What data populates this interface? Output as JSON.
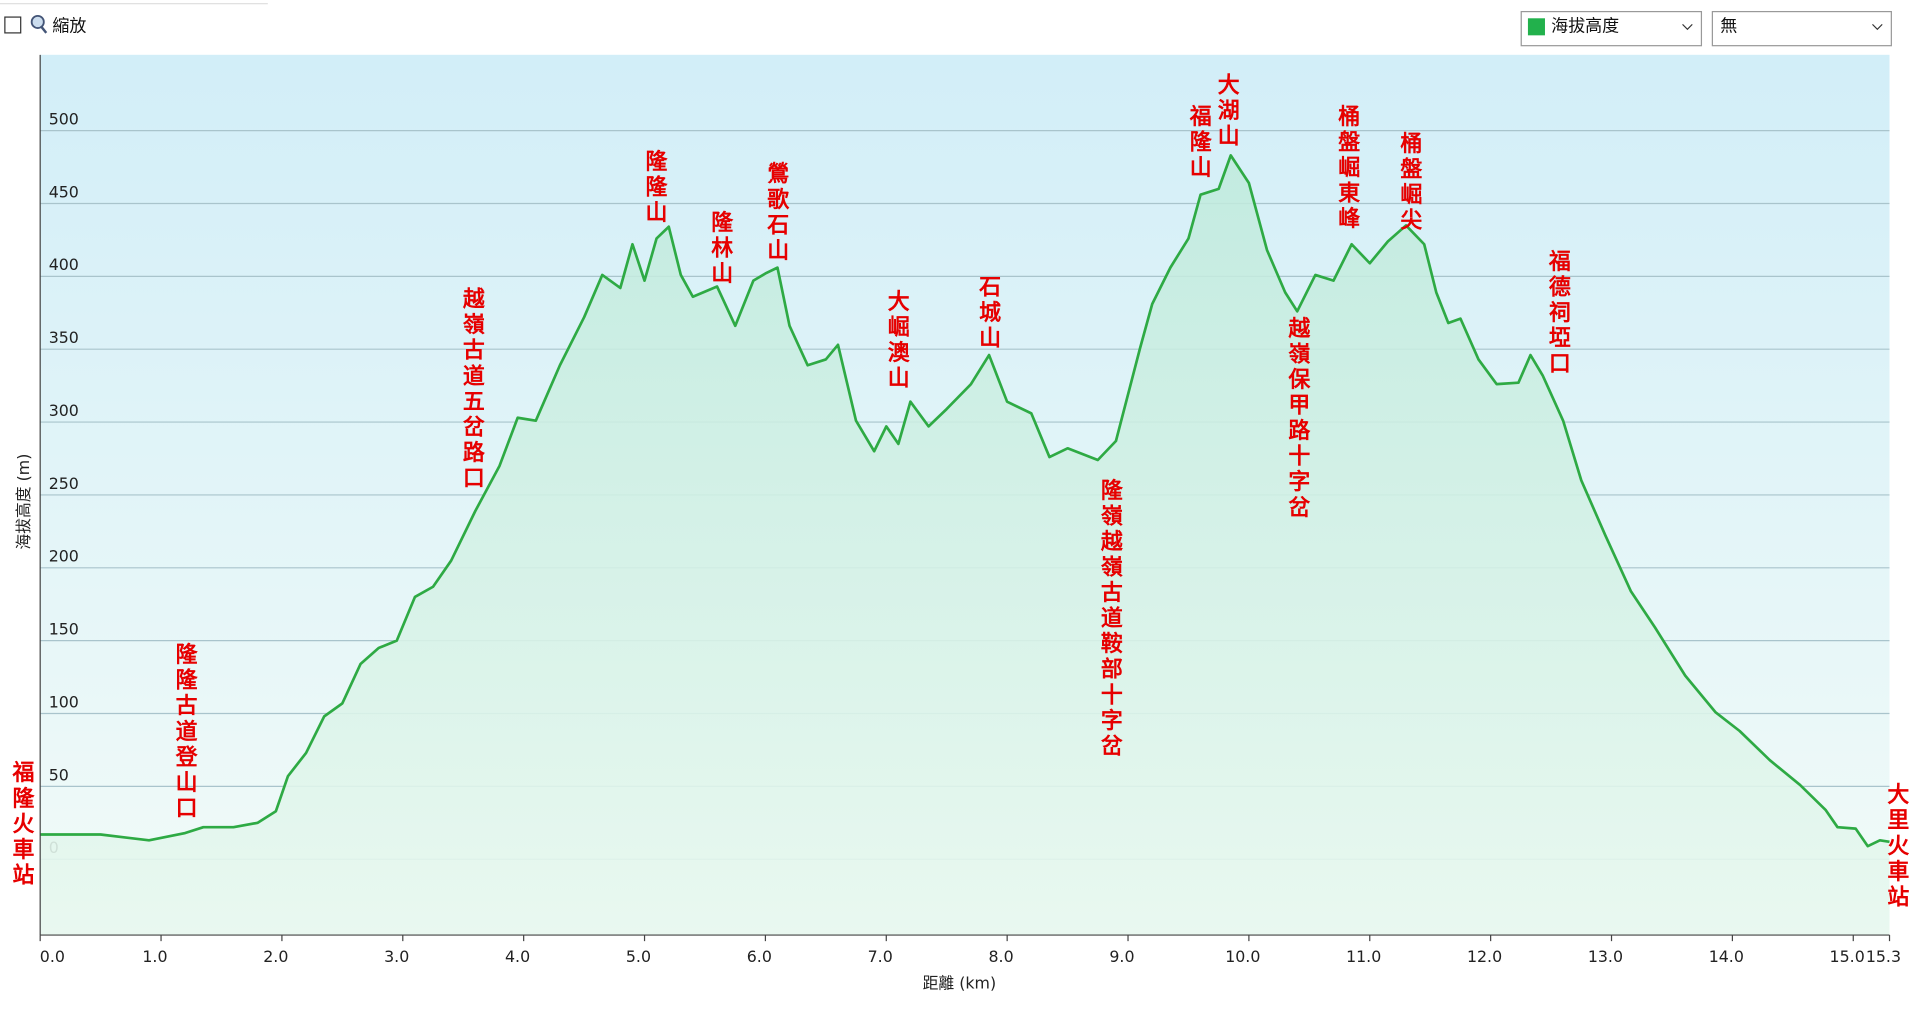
{
  "controls": {
    "zoom_label": "縮放",
    "series_select": "海拔高度",
    "compare_select": "無"
  },
  "chart_data": {
    "type": "area",
    "x_label": "距離 (km)",
    "y_label": "海拔高度 (m)",
    "series": [
      {
        "name": "海拔高度",
        "color": "#2eaa44",
        "x": [
          0,
          0.5,
          0.9,
          1.2,
          1.35,
          1.6,
          1.8,
          1.95,
          2.05,
          2.2,
          2.35,
          2.5,
          2.65,
          2.8,
          2.95,
          3.1,
          3.25,
          3.4,
          3.6,
          3.8,
          3.95,
          4.1,
          4.3,
          4.5,
          4.65,
          4.8,
          4.9,
          5.0,
          5.1,
          5.2,
          5.3,
          5.4,
          5.6,
          5.75,
          5.9,
          6.0,
          6.1,
          6.2,
          6.35,
          6.5,
          6.6,
          6.75,
          6.9,
          7.0,
          7.1,
          7.2,
          7.35,
          7.5,
          7.7,
          7.85,
          8.0,
          8.2,
          8.35,
          8.5,
          8.75,
          8.9,
          9.1,
          9.2,
          9.35,
          9.5,
          9.6,
          9.75,
          9.85,
          10.0,
          10.15,
          10.3,
          10.4,
          10.55,
          10.7,
          10.85,
          11.0,
          11.15,
          11.3,
          11.45,
          11.55,
          11.65,
          11.75,
          11.9,
          12.05,
          12.23,
          12.33,
          12.43,
          12.6,
          12.75,
          12.95,
          13.16,
          13.36,
          13.61,
          13.86,
          14.06,
          14.31,
          14.56,
          14.77,
          14.87,
          15.02,
          15.12,
          15.22,
          15.3
        ],
        "values": [
          17,
          17,
          13,
          18,
          22,
          22,
          25,
          33,
          57,
          73,
          98,
          107,
          134,
          145,
          150,
          180,
          187,
          205,
          239,
          270,
          303,
          301,
          339,
          372,
          401,
          392,
          422,
          397,
          426,
          434,
          401,
          386,
          393,
          366,
          397,
          402,
          406,
          366,
          339,
          343,
          353,
          301,
          280,
          297,
          285,
          314,
          297,
          309,
          326,
          346,
          314,
          306,
          276,
          282,
          274,
          287,
          351,
          381,
          406,
          426,
          456,
          460,
          483,
          464,
          418,
          389,
          376,
          401,
          397,
          422,
          409,
          424,
          435,
          422,
          389,
          368,
          371,
          343,
          326,
          327,
          346,
          332,
          301,
          260,
          222,
          184,
          159,
          126,
          101,
          88,
          68,
          51,
          34,
          22,
          21,
          9,
          13,
          12
        ]
      }
    ],
    "xlim": [
      0,
      15.3
    ],
    "ylim": [
      -52,
      552
    ],
    "xticks": [
      {
        "value": 0,
        "label": "0.0"
      },
      {
        "value": 1,
        "label": "1.0"
      },
      {
        "value": 2,
        "label": "2.0"
      },
      {
        "value": 3,
        "label": "3.0"
      },
      {
        "value": 4,
        "label": "4.0"
      },
      {
        "value": 5,
        "label": "5.0"
      },
      {
        "value": 6,
        "label": "6.0"
      },
      {
        "value": 7,
        "label": "7.0"
      },
      {
        "value": 8,
        "label": "8.0"
      },
      {
        "value": 9,
        "label": "9.0"
      },
      {
        "value": 10,
        "label": "10.0"
      },
      {
        "value": 11,
        "label": "11.0"
      },
      {
        "value": 12,
        "label": "12.0"
      },
      {
        "value": 13,
        "label": "13.0"
      },
      {
        "value": 14,
        "label": "14.0"
      },
      {
        "value": 15,
        "label": "15.0"
      },
      15.3
    ],
    "yticks": [
      0,
      50,
      100,
      150,
      200,
      250,
      300,
      350,
      400,
      450,
      500
    ],
    "grid": true,
    "annotations": [
      "福隆火車站",
      "隆隆古道登山口",
      "越嶺古道五岔路口",
      "隆隆山",
      "隆林山",
      "鶯歌石山",
      "大崛澳山",
      "石城山",
      "隆嶺越嶺古道鞍部十字岔",
      "福隆山",
      "大湖山",
      "越嶺保甲路十字岔",
      "桶盤崛東峰",
      "桶盤崛尖",
      "福德祠埡口",
      "大里火車站"
    ]
  }
}
